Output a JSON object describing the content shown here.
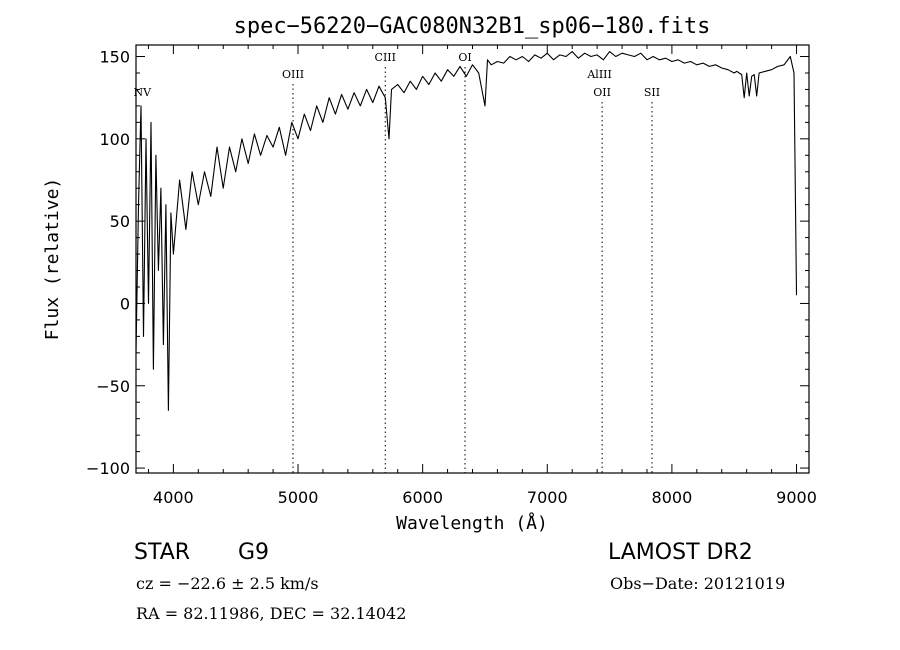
{
  "chart_data": {
    "type": "line",
    "title": "spec−56220−GAC080N32B1_sp06−180.fits",
    "xlabel": "Wavelength (Å)",
    "ylabel": "Flux (relative)",
    "xlim": [
      3700,
      9100
    ],
    "ylim": [
      -103,
      157
    ],
    "xticks": [
      4000,
      5000,
      6000,
      7000,
      8000,
      9000
    ],
    "yticks": [
      -100,
      -50,
      0,
      50,
      100,
      150
    ],
    "ytick_labels": [
      "−100",
      "−50",
      "0",
      "50",
      "100",
      "150"
    ],
    "grid": false,
    "series": [
      {
        "x": [
          3700,
          3720,
          3740,
          3760,
          3780,
          3800,
          3820,
          3840,
          3860,
          3880,
          3900,
          3920,
          3940,
          3960,
          3980,
          4000,
          4050,
          4100,
          4150,
          4200,
          4250,
          4300,
          4350,
          4400,
          4450,
          4500,
          4550,
          4600,
          4650,
          4700,
          4750,
          4800,
          4850,
          4900,
          4950,
          5000,
          5050,
          5100,
          5150,
          5200,
          5250,
          5300,
          5350,
          5400,
          5450,
          5500,
          5550,
          5600,
          5650,
          5700,
          5730,
          5750,
          5800,
          5850,
          5900,
          5950,
          6000,
          6050,
          6100,
          6150,
          6200,
          6250,
          6300,
          6350,
          6400,
          6450,
          6500,
          6520,
          6550,
          6600,
          6650,
          6700,
          6750,
          6800,
          6850,
          6900,
          6950,
          7000,
          7050,
          7100,
          7150,
          7200,
          7250,
          7300,
          7350,
          7400,
          7450,
          7500,
          7550,
          7600,
          7650,
          7700,
          7750,
          7800,
          7850,
          7900,
          7950,
          8000,
          8050,
          8100,
          8150,
          8200,
          8250,
          8300,
          8350,
          8400,
          8450,
          8500,
          8520,
          8540,
          8560,
          8580,
          8600,
          8620,
          8640,
          8660,
          8680,
          8700,
          8750,
          8800,
          8850,
          8900,
          8950,
          8980,
          8990,
          9000
        ],
        "y": [
          -30,
          60,
          120,
          -20,
          100,
          0,
          110,
          -40,
          90,
          20,
          70,
          -25,
          60,
          -65,
          55,
          30,
          75,
          45,
          80,
          60,
          80,
          65,
          95,
          70,
          95,
          80,
          100,
          85,
          103,
          90,
          102,
          95,
          107,
          90,
          110,
          100,
          115,
          105,
          120,
          110,
          125,
          115,
          127,
          118,
          128,
          120,
          130,
          122,
          132,
          125,
          100,
          130,
          133,
          128,
          135,
          130,
          138,
          133,
          140,
          135,
          142,
          138,
          144,
          138,
          145,
          140,
          120,
          148,
          145,
          147,
          146,
          150,
          148,
          150,
          147,
          151,
          149,
          152,
          148,
          151,
          150,
          153,
          149,
          152,
          150,
          151,
          148,
          153,
          150,
          152,
          151,
          150,
          152,
          148,
          150,
          148,
          149,
          147,
          148,
          146,
          147,
          145,
          146,
          144,
          145,
          143,
          142,
          140,
          141,
          140,
          139,
          125,
          140,
          126,
          138,
          139,
          126,
          140,
          141,
          142,
          144,
          145,
          150,
          140,
          70,
          5
        ]
      }
    ],
    "annotations": [
      {
        "label": "NV",
        "x": 3750,
        "marker_line": false
      },
      {
        "label": "OIII",
        "x": 4960,
        "marker_line": true
      },
      {
        "label": "CIII",
        "x": 5700,
        "marker_line": true
      },
      {
        "label": "OI",
        "x": 6340,
        "marker_line": true
      },
      {
        "label": "AlIII",
        "x": 7420,
        "marker_line": false
      },
      {
        "label": "OII",
        "x": 7440,
        "marker_line": true
      },
      {
        "label": "SII",
        "x": 7840,
        "marker_line": true
      }
    ]
  },
  "info": {
    "class": "STAR",
    "subclass": "G9",
    "survey": "LAMOST DR2",
    "cz": "cz = −22.6 ± 2.5 km/s",
    "obs_date": "Obs−Date: 20121019",
    "radec": "RA =  82.11986, DEC =  32.14042"
  }
}
